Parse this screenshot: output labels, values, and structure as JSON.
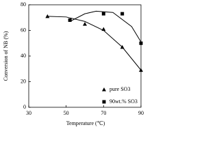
{
  "chart_data": {
    "type": "scatter",
    "x_label": "Temperature (℃)",
    "y_label": "Conversion of NB (%)",
    "xlim": [
      30,
      90
    ],
    "xticks": [
      30,
      50,
      70,
      90
    ],
    "ylim": [
      0,
      80
    ],
    "yticks": [
      0,
      20,
      40,
      60,
      80
    ],
    "legend": "lower right",
    "series": [
      {
        "name": "pure SO3",
        "color": "#000000",
        "marker": "triangle",
        "x": [
          40,
          60,
          70,
          80,
          90
        ],
        "values": [
          71,
          65,
          61,
          47,
          29
        ],
        "fit": {
          "x": [
            40,
            50,
            60,
            70,
            80,
            90
          ],
          "values": [
            71,
            70.5,
            67,
            60,
            47,
            29
          ]
        }
      },
      {
        "name": "90wt.% SO3",
        "color": "#000000",
        "marker": "square",
        "x": [
          52,
          70,
          80,
          90
        ],
        "values": [
          68,
          73,
          73,
          50
        ],
        "fit": {
          "x": [
            52,
            60,
            66,
            75,
            85,
            90
          ],
          "values": [
            67,
            73,
            75,
            74,
            63,
            51
          ]
        }
      }
    ]
  }
}
